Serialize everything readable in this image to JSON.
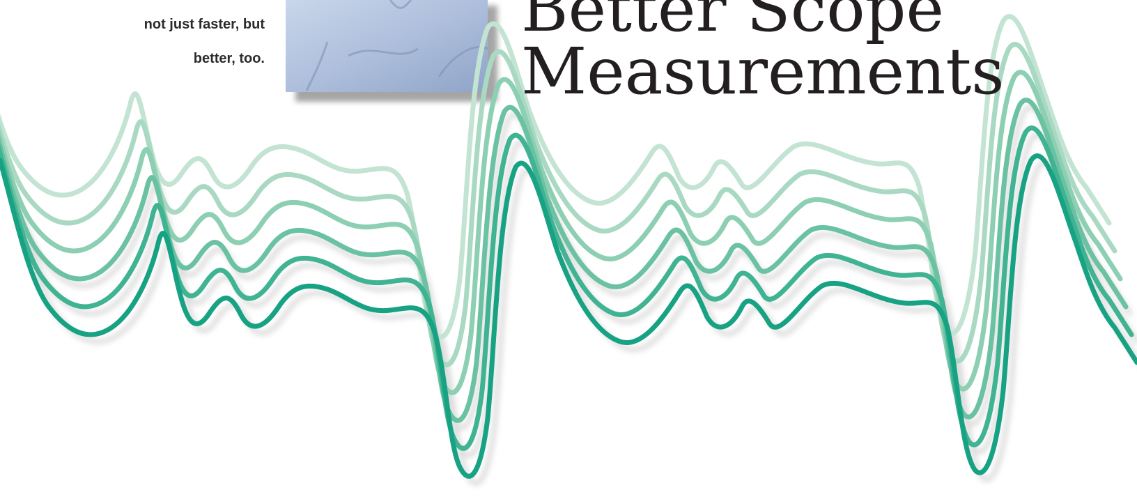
{
  "tagline": {
    "lines": [
      "not just faster, but",
      "better, too."
    ]
  },
  "headline": {
    "lines": [
      "Better Scope",
      "Measurements"
    ]
  }
}
